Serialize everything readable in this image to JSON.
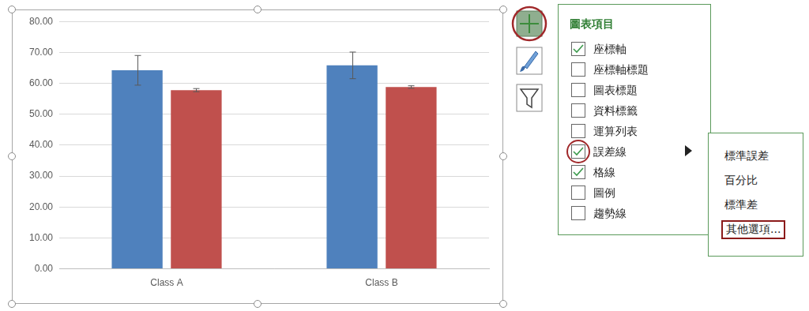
{
  "chart_data": {
    "type": "bar",
    "categories": [
      "Class A",
      "Class B"
    ],
    "series": [
      {
        "color": "#4f81bd",
        "values": [
          64.2,
          65.8
        ],
        "errors": [
          4.8,
          4.3
        ]
      },
      {
        "color": "#c0504d",
        "values": [
          57.8,
          58.8
        ],
        "errors": [
          0.5,
          0.4
        ]
      }
    ],
    "ylim": [
      0,
      80
    ],
    "yticks": [
      {
        "value": 0,
        "label": "0.00"
      },
      {
        "value": 10,
        "label": "10.00"
      },
      {
        "value": 20,
        "label": "20.00"
      },
      {
        "value": 30,
        "label": "30.00"
      },
      {
        "value": 40,
        "label": "40.00"
      },
      {
        "value": 50,
        "label": "50.00"
      },
      {
        "value": 60,
        "label": "60.00"
      },
      {
        "value": 70,
        "label": "70.00"
      },
      {
        "value": 80,
        "label": "80.00"
      }
    ],
    "grid": true
  },
  "panel": {
    "title": "圖表項目",
    "items": [
      {
        "label": "座標軸",
        "checked": true
      },
      {
        "label": "座標軸標題",
        "checked": false
      },
      {
        "label": "圖表標題",
        "checked": false
      },
      {
        "label": "資料標籤",
        "checked": false
      },
      {
        "label": "運算列表",
        "checked": false
      },
      {
        "label": "誤差線",
        "checked": true,
        "circled": true,
        "submenu": true
      },
      {
        "label": "格線",
        "checked": true
      },
      {
        "label": "圖例",
        "checked": false
      },
      {
        "label": "趨勢線",
        "checked": false
      }
    ],
    "submenu": [
      {
        "label": "標準誤差"
      },
      {
        "label": "百分比"
      },
      {
        "label": "標準差"
      },
      {
        "label": "其他選項...",
        "boxed": true
      }
    ]
  }
}
